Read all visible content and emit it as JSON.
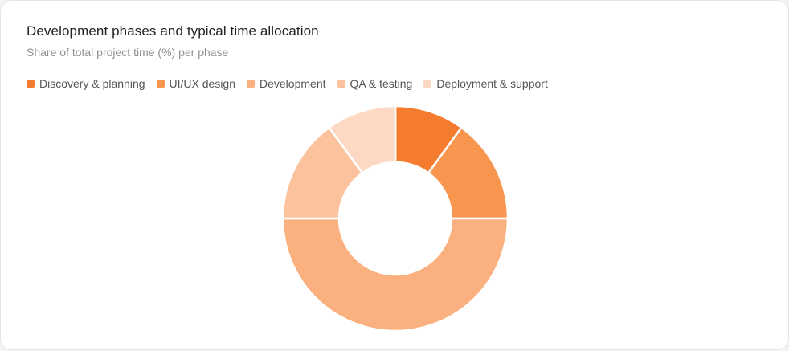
{
  "chart_data": {
    "type": "pie",
    "variant": "donut",
    "title": "Development phases and typical time allocation",
    "subtitle": "Share of total project time (%) per phase",
    "legend_position": "top-left",
    "categories": [
      "Discovery & planning",
      "UI/UX design",
      "Development",
      "QA & testing",
      "Deployment & support"
    ],
    "values": [
      10,
      15,
      50,
      15,
      10
    ],
    "colors": [
      "#f57c2f",
      "#f8954f",
      "#fbb07f",
      "#fcc29e",
      "#fdd9c3"
    ],
    "unit": "%"
  },
  "legend": [
    {
      "label": "Discovery & planning",
      "color": "#f57c2f"
    },
    {
      "label": "UI/UX design",
      "color": "#f8954f"
    },
    {
      "label": "Development",
      "color": "#fbb07f"
    },
    {
      "label": "QA & testing",
      "color": "#fcc29e"
    },
    {
      "label": "Deployment & support",
      "color": "#fdd9c3"
    }
  ]
}
